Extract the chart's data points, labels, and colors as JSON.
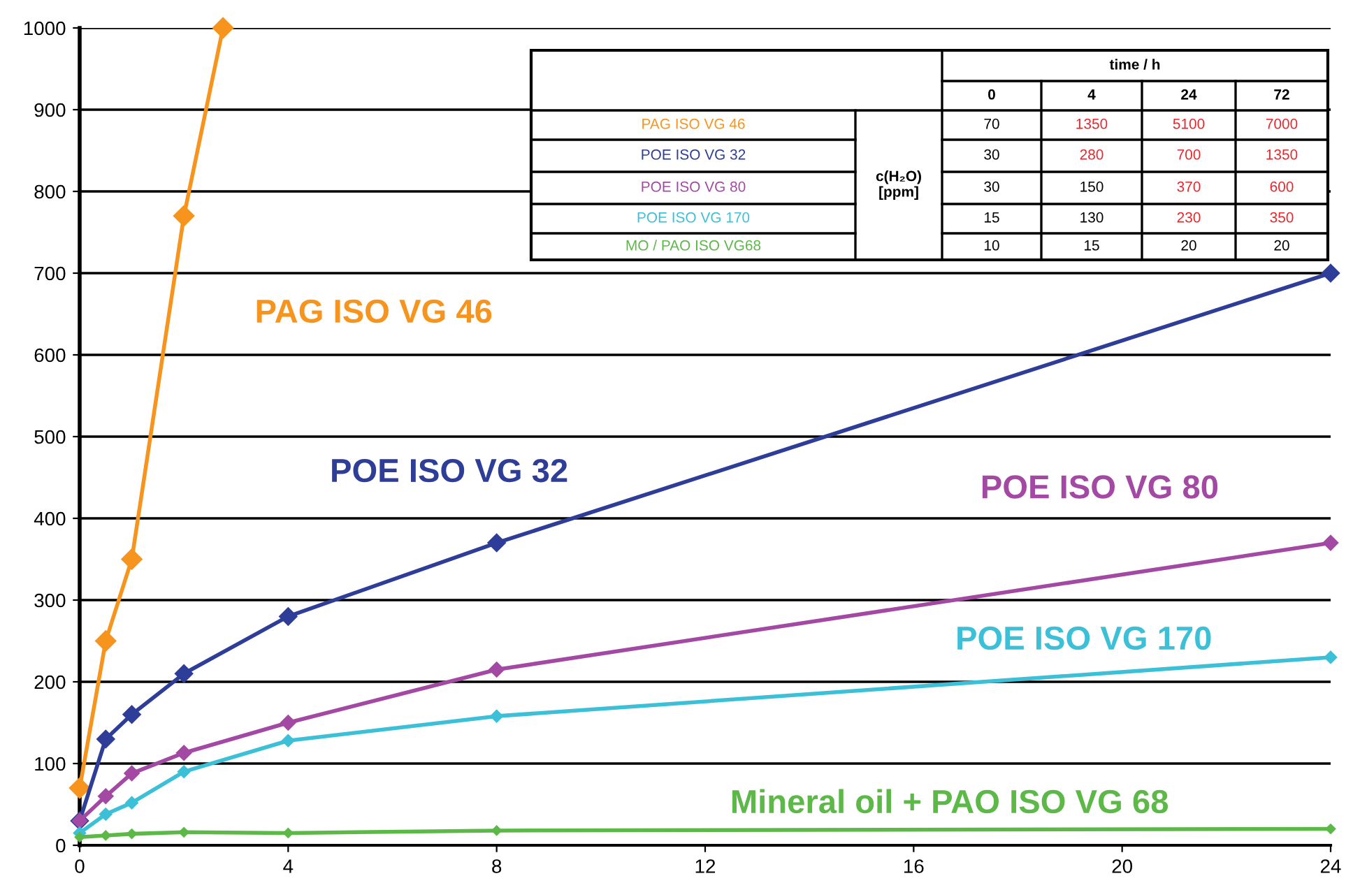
{
  "chart_data": {
    "type": "line",
    "x": [
      0,
      0.5,
      1,
      2,
      4,
      8,
      24
    ],
    "series": [
      {
        "name": "PAG ISO VG 46",
        "color": "#f7941d",
        "x": [
          0,
          0.5,
          1,
          2,
          2.75
        ],
        "values": [
          70,
          250,
          350,
          770,
          1000
        ]
      },
      {
        "name": "POE ISO VG 32",
        "color": "#2e3d98",
        "values": [
          30,
          130,
          160,
          210,
          280,
          370,
          700
        ]
      },
      {
        "name": "POE ISO VG 80",
        "color": "#a349a4",
        "values": [
          30,
          60,
          88,
          113,
          150,
          215,
          370
        ]
      },
      {
        "name": "POE ISO VG 170",
        "color": "#3cc0d8",
        "values": [
          15,
          38,
          52,
          90,
          128,
          158,
          230
        ]
      },
      {
        "name": "Mineral oil + PAO ISO VG 68",
        "color": "#5cb847",
        "values": [
          10,
          12,
          14,
          16,
          15,
          18,
          20
        ]
      }
    ],
    "xlim": [
      0,
      24
    ],
    "xticks": [
      0,
      4,
      8,
      12,
      16,
      20,
      24
    ],
    "ylim": [
      0,
      1000
    ],
    "yticks": [
      0,
      100,
      200,
      300,
      400,
      500,
      600,
      700,
      800,
      900,
      1000
    ],
    "grid": "y",
    "marker": "diamond",
    "line_style": "solid",
    "annotations": [
      "time / h",
      "0",
      "4",
      "24",
      "72",
      "c(H₂O)\n[ppm]",
      "PAG ISO VG 46",
      "POE ISO VG 32",
      "POE ISO VG 80",
      "POE ISO VG 170",
      "MO / PAO ISO VG68",
      "70",
      "1350",
      "5100",
      "7000",
      "30",
      "280",
      "700",
      "1350",
      "30",
      "150",
      "370",
      "600",
      "15",
      "130",
      "230",
      "350",
      "10",
      "15",
      "20",
      "20"
    ]
  }
}
